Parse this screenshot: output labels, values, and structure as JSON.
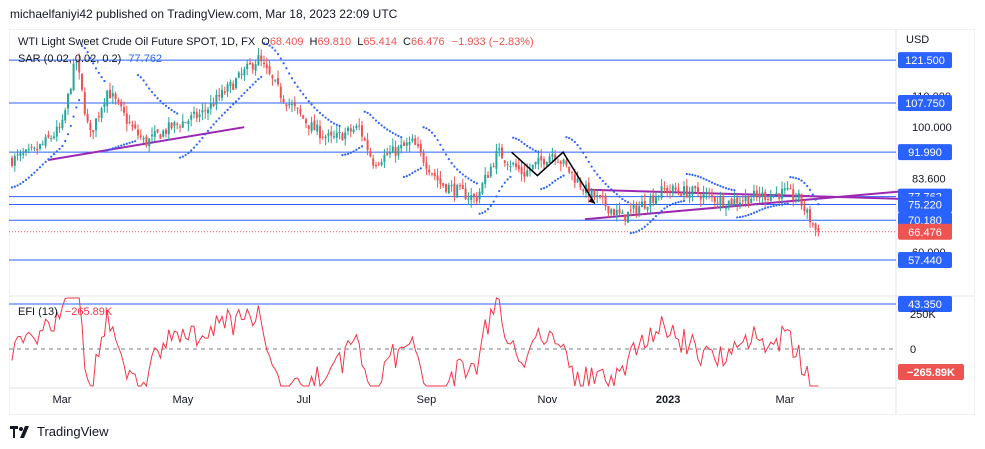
{
  "header": {
    "published": "michaelfaniyi42 published on TradingView.com, Mar 18, 2023 22:09 UTC"
  },
  "legend": {
    "symbol": "WTI Light Sweet Crude Oil Future SPOT, 1D, FX",
    "o_label": "O",
    "o_value": "68.409",
    "h_label": "H",
    "h_value": "69.810",
    "l_label": "L",
    "l_value": "65.414",
    "c_label": "C",
    "c_value": "66.476",
    "change": "−1.933 (−2.83%)",
    "sar_label": "SAR (0.02, 0.02, 0.2)",
    "sar_value": "77.762",
    "efi_label": "EFI (13)",
    "efi_value": "−265.89K"
  },
  "footer": {
    "brand": "TradingView"
  },
  "colors": {
    "up": "#26a69a",
    "down": "#ef5350",
    "sar": "#2962ff",
    "trendline": "#9c27b0",
    "hline": "#2962ff",
    "efi": "#f23645",
    "arrow": "#000000"
  },
  "chart_data": {
    "type": "candlestick",
    "currency": "USD",
    "price_axis_labels": [
      "110.000",
      "100.000",
      "83.600",
      "60.000"
    ],
    "marked_levels": [
      {
        "value": 121.5,
        "label": "121.500",
        "kind": "hline"
      },
      {
        "value": 107.75,
        "label": "107.750",
        "kind": "hline"
      },
      {
        "value": 91.99,
        "label": "91.990",
        "kind": "hline"
      },
      {
        "value": 77.762,
        "label": "77.762",
        "kind": "sar"
      },
      {
        "value": 75.22,
        "label": "75.220",
        "kind": "hline"
      },
      {
        "value": 70.18,
        "label": "70.180",
        "kind": "hline"
      },
      {
        "value": 66.476,
        "label": "66.476",
        "kind": "last"
      },
      {
        "value": 57.44,
        "label": "57.440",
        "kind": "hline"
      },
      {
        "value": 43.35,
        "label": "43.350",
        "kind": "hline"
      }
    ],
    "x_labels": [
      "Mar",
      "May",
      "Jul",
      "Sep",
      "Nov",
      "2023",
      "Mar"
    ],
    "price_path": [
      [
        "2022-02-01",
        89
      ],
      [
        "2022-02-15",
        92
      ],
      [
        "2022-03-01",
        100
      ],
      [
        "2022-03-08",
        122
      ],
      [
        "2022-03-15",
        97
      ],
      [
        "2022-03-24",
        112
      ],
      [
        "2022-04-05",
        100
      ],
      [
        "2022-04-12",
        95
      ],
      [
        "2022-04-25",
        100
      ],
      [
        "2022-05-10",
        104
      ],
      [
        "2022-05-25",
        113
      ],
      [
        "2022-06-08",
        122
      ],
      [
        "2022-06-20",
        110
      ],
      [
        "2022-07-05",
        100
      ],
      [
        "2022-07-15",
        96
      ],
      [
        "2022-07-29",
        100
      ],
      [
        "2022-08-05",
        89
      ],
      [
        "2022-08-25",
        95
      ],
      [
        "2022-09-08",
        82
      ],
      [
        "2022-09-26",
        77
      ],
      [
        "2022-10-07",
        92
      ],
      [
        "2022-10-20",
        85
      ],
      [
        "2022-11-04",
        92
      ],
      [
        "2022-11-20",
        80
      ],
      [
        "2022-12-09",
        71
      ],
      [
        "2022-12-30",
        80
      ],
      [
        "2023-01-15",
        79
      ],
      [
        "2023-01-31",
        76
      ],
      [
        "2023-02-15",
        78
      ],
      [
        "2023-03-01",
        79
      ],
      [
        "2023-03-08",
        77
      ],
      [
        "2023-03-17",
        66.476
      ]
    ],
    "efi_axis_labels": [
      "250K",
      "0"
    ],
    "efi_last": -265.89
  }
}
